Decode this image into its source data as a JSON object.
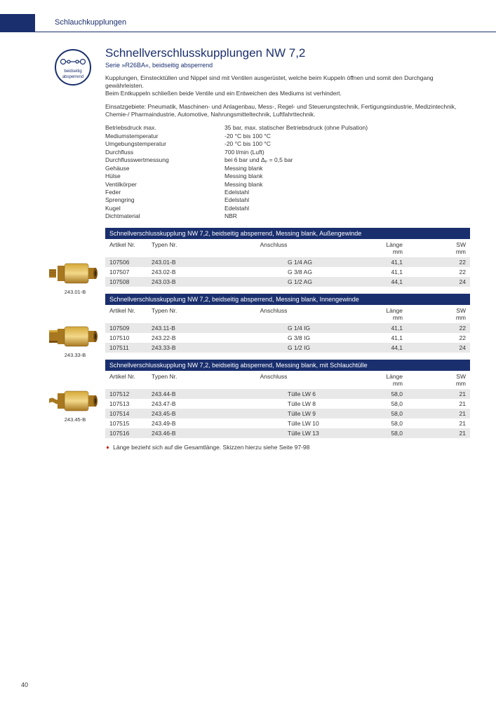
{
  "header": {
    "category": "Schlauchkupplungen"
  },
  "icon": {
    "line1": "beidseitig",
    "line2": "absperrend"
  },
  "title": "Schnellverschlusskupplungen NW 7,2",
  "subtitle": "Serie »R26BA«, beidseitig absperrend",
  "para1": "Kupplungen, Einstecktüllen und Nippel sind mit Ventilen ausgerüstet, welche beim Kuppeln öffnen und somit den Durchgang gewährleisten.",
  "para1b": "Beim Entkuppeln schließen beide Ventile und ein Entweichen des Mediums ist verhindert.",
  "para2": "Einsatzgebiete: Pneumatik, Maschinen- und Anlagenbau, Mess-, Regel- und Steuerungstechnik, Fertigungsindustrie, Medizintechnik, Chemie-/ Pharmaindustrie, Automotive, Nahrungsmitteltechnik, Luftfahrttechnik.",
  "specs": [
    {
      "label": "Betriebsdruck max.",
      "value": "35 bar, max. statischer Betriebsdruck (ohne Pulsation)"
    },
    {
      "label": "Mediumstemperatur",
      "value": "-20 °C bis 100 °C"
    },
    {
      "label": "Umgebungstemperatur",
      "value": "-20 °C bis 100 °C"
    },
    {
      "label": "Durchfluss",
      "value": "700 l/min (Luft)"
    },
    {
      "label": "Durchflusswertmessung",
      "value": "bei 6 bar und Δₚ = 0,5 bar"
    },
    {
      "label": "Gehäuse",
      "value": "Messing blank"
    },
    {
      "label": "Hülse",
      "value": "Messing blank"
    },
    {
      "label": "Ventilkörper",
      "value": "Messing blank"
    },
    {
      "label": "Feder",
      "value": "Edelstahl"
    },
    {
      "label": "Sprengring",
      "value": "Edelstahl"
    },
    {
      "label": "Kugel",
      "value": "Edelstahl"
    },
    {
      "label": "Dichtmaterial",
      "value": "NBR"
    }
  ],
  "colHeaders": {
    "art": "Artikel Nr.",
    "typ": "Typen Nr.",
    "ans": "Anschluss",
    "len": "Länge",
    "lenUnit": "mm",
    "sw": "SW",
    "swUnit": "mm"
  },
  "sections": [
    {
      "bar": "Schnellverschlusskupplung NW 7,2, beidseitig absperrend, Messing blank, Außengewinde",
      "caption": "243.01-B",
      "rows": [
        {
          "art": "107506",
          "typ": "243.01-B",
          "ans": "G 1/4 AG",
          "len": "41,1",
          "sw": "22"
        },
        {
          "art": "107507",
          "typ": "243.02-B",
          "ans": "G 3/8 AG",
          "len": "41,1",
          "sw": "22"
        },
        {
          "art": "107508",
          "typ": "243.03-B",
          "ans": "G 1/2 AG",
          "len": "44,1",
          "sw": "24"
        }
      ]
    },
    {
      "bar": "Schnellverschlusskupplung NW 7,2, beidseitig absperrend, Messing blank, Innengewinde",
      "caption": "243.33-B",
      "rows": [
        {
          "art": "107509",
          "typ": "243.11-B",
          "ans": "G 1/4 IG",
          "len": "41,1",
          "sw": "22"
        },
        {
          "art": "107510",
          "typ": "243.22-B",
          "ans": "G 3/8 IG",
          "len": "41,1",
          "sw": "22"
        },
        {
          "art": "107511",
          "typ": "243.33-B",
          "ans": "G 1/2 IG",
          "len": "44,1",
          "sw": "24"
        }
      ]
    },
    {
      "bar": "Schnellverschlusskupplung NW 7,2, beidseitig absperrend, Messing blank, mit Schlauchtülle",
      "caption": "243.45-B",
      "rows": [
        {
          "art": "107512",
          "typ": "243.44-B",
          "ans": "Tülle LW 6",
          "len": "58,0",
          "sw": "21"
        },
        {
          "art": "107513",
          "typ": "243.47-B",
          "ans": "Tülle LW 8",
          "len": "58,0",
          "sw": "21"
        },
        {
          "art": "107514",
          "typ": "243.45-B",
          "ans": "Tülle LW 9",
          "len": "58,0",
          "sw": "21"
        },
        {
          "art": "107515",
          "typ": "243.49-B",
          "ans": "Tülle LW 10",
          "len": "58,0",
          "sw": "21"
        },
        {
          "art": "107516",
          "typ": "243.46-B",
          "ans": "Tülle LW 13",
          "len": "58,0",
          "sw": "21"
        }
      ]
    }
  ],
  "note": "Länge bezieht sich auf die Gesamtlänge. Skizzen hierzu siehe Seite 97-98",
  "pageNum": "40",
  "colors": {
    "brand": "#1a2f6e",
    "brass1": "#d4a838",
    "brass2": "#a87820",
    "brassDark": "#7a5010",
    "rowAlt": "#e8e8e8"
  }
}
